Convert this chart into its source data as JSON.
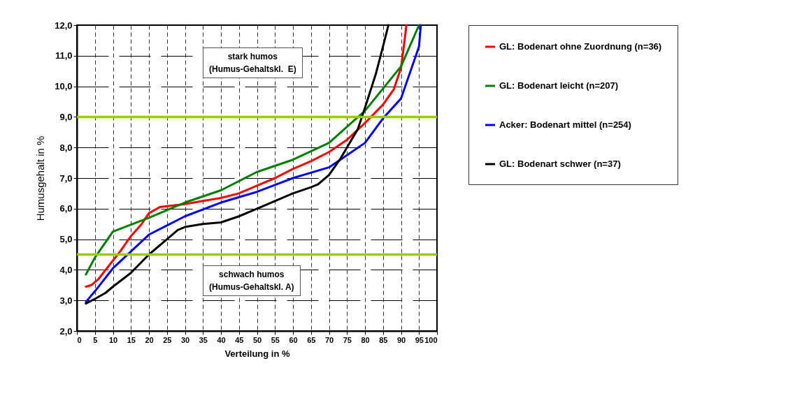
{
  "chart_data": {
    "type": "line",
    "xlabel": "Verteilung in %",
    "ylabel": "Humusgehalt in %",
    "xlim": [
      0,
      100
    ],
    "xticks": [
      0,
      5,
      10,
      15,
      20,
      25,
      30,
      35,
      40,
      45,
      50,
      55,
      60,
      65,
      70,
      75,
      80,
      85,
      90,
      95,
      100
    ],
    "ylim": [
      2,
      12
    ],
    "yticks": [
      {
        "value": 2,
        "label": "2,0"
      },
      {
        "value": 3,
        "label": "3,0"
      },
      {
        "value": 4,
        "label": "4,0"
      },
      {
        "value": 5,
        "label": "5,0"
      },
      {
        "value": 6,
        "label": "6,0"
      },
      {
        "value": 7,
        "label": "7,0"
      },
      {
        "value": 8,
        "label": "8,0"
      },
      {
        "value": 9,
        "label": "9,0"
      },
      {
        "value": 10,
        "label": "10,0"
      },
      {
        "value": 11,
        "label": "11,0"
      },
      {
        "value": 12,
        "label": "12,0"
      }
    ],
    "grid": true,
    "legend": "right",
    "marker": "none",
    "line_style": "solid",
    "series": [
      {
        "name": "GL: Bodenart ohne Zuordnung (n=36)",
        "color": "#ff0000",
        "x": [
          2.5,
          4,
          6,
          10,
          12,
          15,
          18,
          20,
          23,
          30,
          35,
          40,
          45,
          50,
          55,
          60,
          65,
          70,
          75,
          80,
          85,
          88,
          90,
          91,
          91.5
        ],
        "values": [
          3.45,
          3.5,
          3.7,
          4.3,
          4.6,
          5.1,
          5.5,
          5.85,
          6.05,
          6.15,
          6.25,
          6.35,
          6.5,
          6.75,
          7.0,
          7.3,
          7.55,
          7.85,
          8.25,
          8.8,
          9.4,
          9.9,
          10.6,
          11.5,
          12
        ]
      },
      {
        "name": "GL: Bodenart leicht (n=207)",
        "color": "#008000",
        "x": [
          2.5,
          5,
          10,
          20,
          30,
          40,
          50,
          60,
          70,
          80,
          90,
          95
        ],
        "values": [
          3.85,
          4.4,
          5.25,
          5.7,
          6.2,
          6.6,
          7.2,
          7.6,
          8.15,
          9.2,
          10.65,
          12
        ]
      },
      {
        "name": "Acker: Bodenart mittel (n=254)",
        "color": "#0000ff",
        "x": [
          2.5,
          5,
          10,
          15,
          20,
          25,
          30,
          40,
          50,
          60,
          70,
          75,
          80,
          85,
          90,
          95,
          95.5
        ],
        "values": [
          2.95,
          3.3,
          4.05,
          4.6,
          5.15,
          5.45,
          5.75,
          6.2,
          6.55,
          7.0,
          7.35,
          7.75,
          8.15,
          8.95,
          9.6,
          11.3,
          12
        ]
      },
      {
        "name": "GL: Bodenart schwer (n=37)",
        "color": "#000000",
        "x": [
          2.5,
          5,
          8,
          10,
          15,
          20,
          25,
          28,
          30,
          35,
          40,
          45,
          50,
          55,
          60,
          65,
          67,
          70,
          73,
          75,
          78,
          80,
          83,
          85,
          86.5
        ],
        "values": [
          2.9,
          3.05,
          3.25,
          3.45,
          3.9,
          4.5,
          5.0,
          5.3,
          5.4,
          5.5,
          5.55,
          5.75,
          6.0,
          6.25,
          6.5,
          6.7,
          6.8,
          7.1,
          7.6,
          8.0,
          8.6,
          9.3,
          10.4,
          11.3,
          12
        ]
      }
    ],
    "ref_lines": [
      {
        "axis": "y",
        "value": 9,
        "color": "#99cc00"
      },
      {
        "axis": "y",
        "value": 4.5,
        "color": "#99cc00"
      }
    ],
    "annotations": [
      "stark humos\n(Humus-Gehaltskl.  E)",
      "schwach humos\n(Humus-Gehaltskl. A)"
    ]
  }
}
